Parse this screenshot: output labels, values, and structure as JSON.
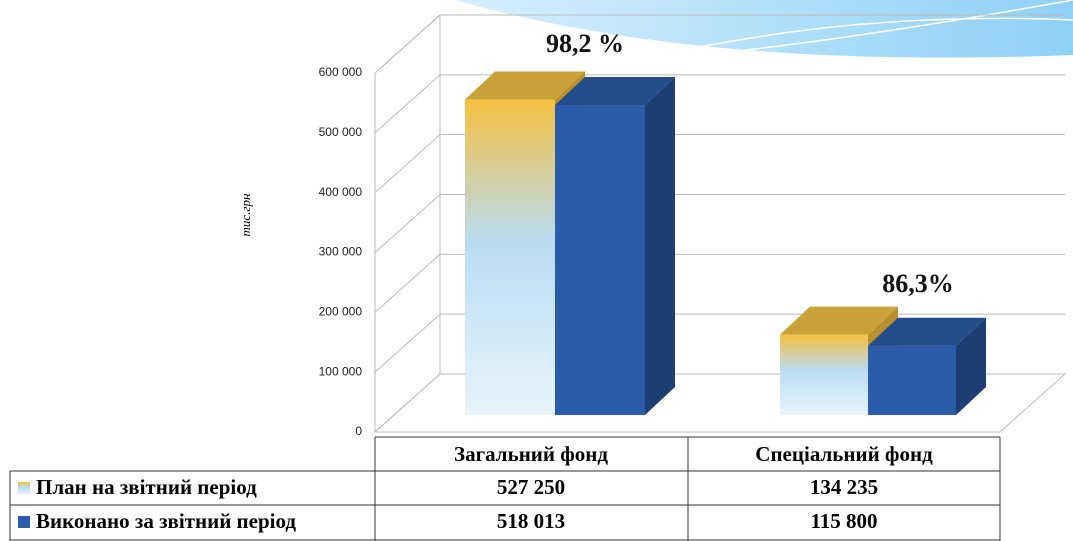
{
  "chart_data": {
    "type": "bar3d",
    "ylabel": "тис.грн",
    "categories": [
      "Загальний фонд",
      "Спеціальний фонд"
    ],
    "series": [
      {
        "name": "План на звітний  період",
        "color": "#f5c040",
        "values": [
          527250,
          134235
        ],
        "value_labels": [
          "527 250",
          "134 235"
        ]
      },
      {
        "name": "Виконано за звітний  період",
        "color": "#2a5caa",
        "values": [
          518013,
          115800
        ],
        "value_labels": [
          "518 013",
          "115 800"
        ]
      }
    ],
    "annotations": [
      "98,2 %",
      "86,3%"
    ],
    "ylim": [
      0,
      600000
    ],
    "yticks": [
      0,
      {
        "value": 100000,
        "label": "100 000"
      },
      {
        "value": 200000,
        "label": "200 000"
      },
      {
        "value": 300000,
        "label": "300 000"
      },
      {
        "value": 400000,
        "label": "400 000"
      },
      {
        "value": 500000,
        "label": "500 000"
      },
      {
        "value": 600000,
        "label": "600 000"
      }
    ],
    "grid": true
  }
}
